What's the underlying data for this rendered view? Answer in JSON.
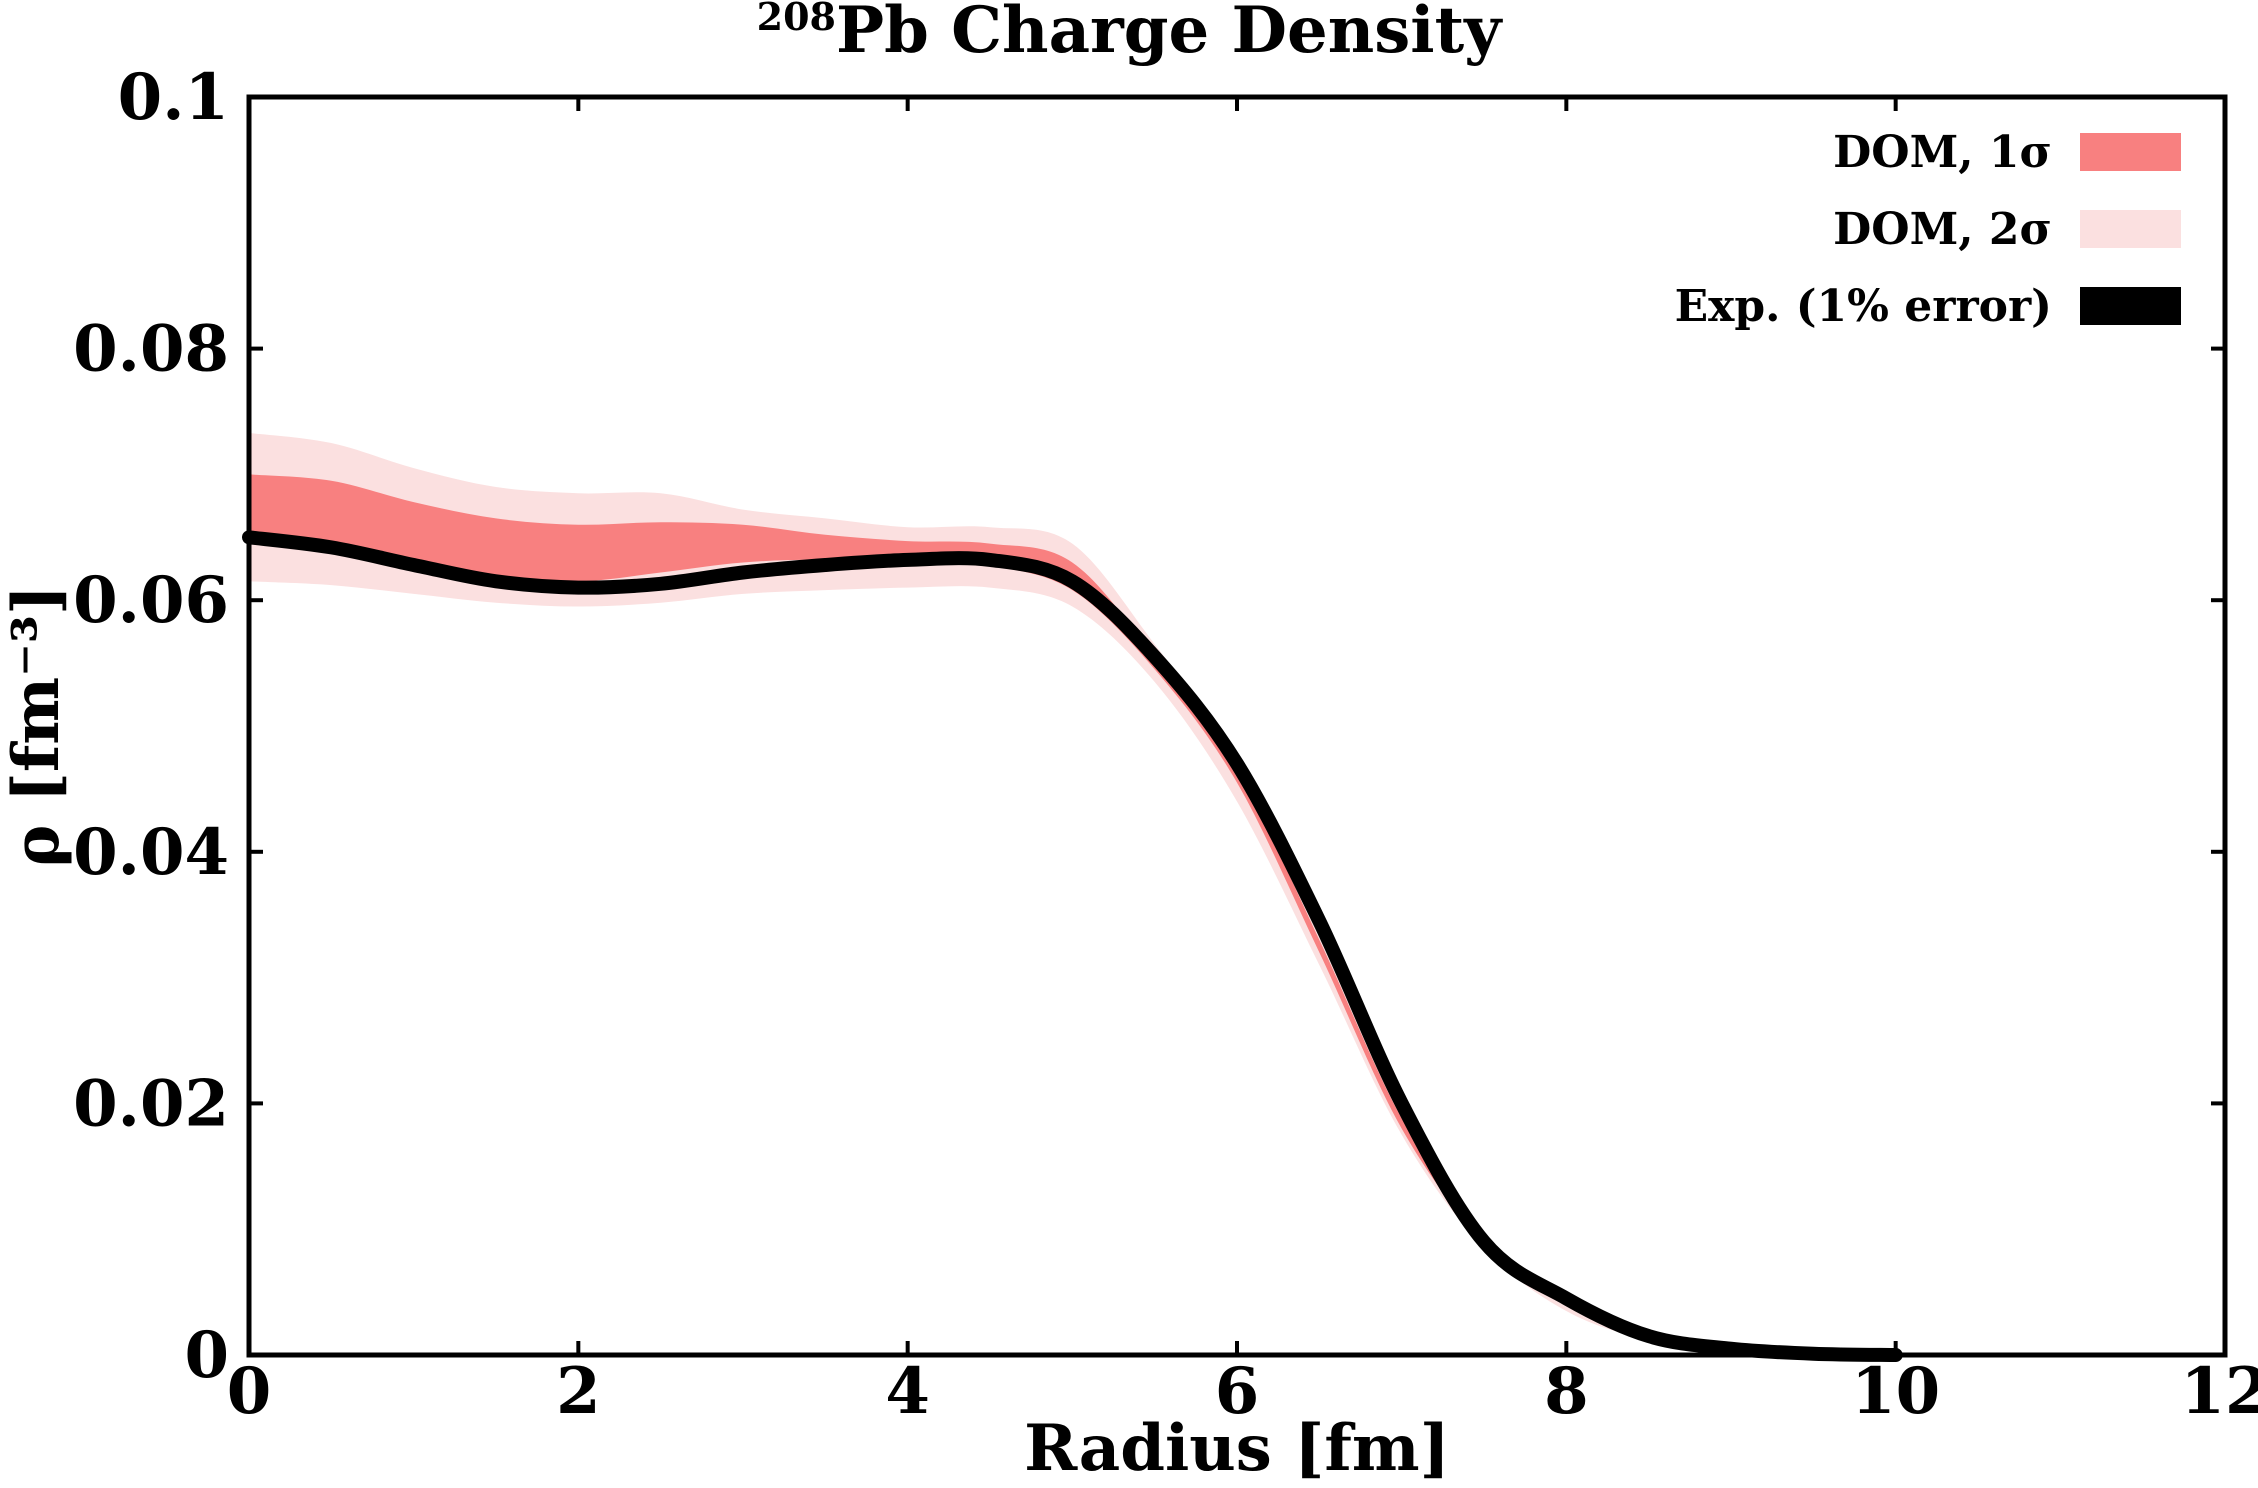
{
  "chart_data": {
    "type": "area",
    "title": "Pb Charge Density",
    "title_superscript": "208",
    "xlabel": "Radius [fm]",
    "ylabel": "ρ [fm⁻³]",
    "xlim": [
      0,
      12
    ],
    "ylim": [
      0,
      0.1
    ],
    "x_ticks": [
      "0",
      "2",
      "4",
      "6",
      "8",
      "10",
      "12"
    ],
    "y_ticks": [
      "0",
      "0.02",
      "0.04",
      "0.06",
      "0.08",
      "0.1"
    ],
    "grid": false,
    "legend_position": "top-right",
    "colors": {
      "one_sigma": "#f88080",
      "two_sigma": "#fbe0e0",
      "experiment": "#000000"
    },
    "x": [
      0,
      0.5,
      1,
      1.5,
      2,
      2.5,
      3,
      3.5,
      4,
      4.5,
      5,
      5.5,
      6,
      6.5,
      7,
      7.5,
      8,
      8.5,
      9,
      9.5,
      10
    ],
    "series": [
      {
        "name": "DOM, 2σ",
        "lower": [
          0.0615,
          0.0612,
          0.0605,
          0.0598,
          0.0595,
          0.0598,
          0.0605,
          0.0608,
          0.061,
          0.061,
          0.0595,
          0.0535,
          0.044,
          0.031,
          0.0175,
          0.0085,
          0.0035,
          0.0012,
          0.0004,
          0.0001,
          0.0
        ],
        "upper": [
          0.0733,
          0.0725,
          0.0705,
          0.069,
          0.0685,
          0.0685,
          0.0672,
          0.0665,
          0.0658,
          0.0658,
          0.0645,
          0.0565,
          0.0475,
          0.034,
          0.0195,
          0.0095,
          0.0045,
          0.0016,
          0.0006,
          0.0002,
          0.0
        ]
      },
      {
        "name": "DOM, 1σ",
        "lower": [
          0.065,
          0.064,
          0.063,
          0.062,
          0.0615,
          0.0622,
          0.063,
          0.0632,
          0.0628,
          0.0627,
          0.0608,
          0.0545,
          0.0455,
          0.032,
          0.018,
          0.009,
          0.0042,
          0.0014,
          0.0005,
          0.0001,
          0.0
        ],
        "upper": [
          0.07,
          0.0695,
          0.0678,
          0.0665,
          0.066,
          0.0662,
          0.066,
          0.0652,
          0.0647,
          0.0645,
          0.063,
          0.0555,
          0.0465,
          0.033,
          0.0188,
          0.0093,
          0.0046,
          0.0017,
          0.0006,
          0.0002,
          0.0
        ]
      },
      {
        "name": "Exp. (1% error)",
        "values": [
          0.065,
          0.0642,
          0.0628,
          0.0615,
          0.061,
          0.0613,
          0.0622,
          0.0628,
          0.0632,
          0.0632,
          0.0615,
          0.0555,
          0.047,
          0.0345,
          0.02,
          0.009,
          0.0045,
          0.0015,
          0.0005,
          0.0001,
          0.0
        ]
      }
    ],
    "legend": [
      {
        "label": "DOM, 1σ",
        "color": "#f88080"
      },
      {
        "label": "DOM, 2σ",
        "color": "#fbe0e0"
      },
      {
        "label": "Exp. (1% error)",
        "color": "#000000"
      }
    ]
  }
}
